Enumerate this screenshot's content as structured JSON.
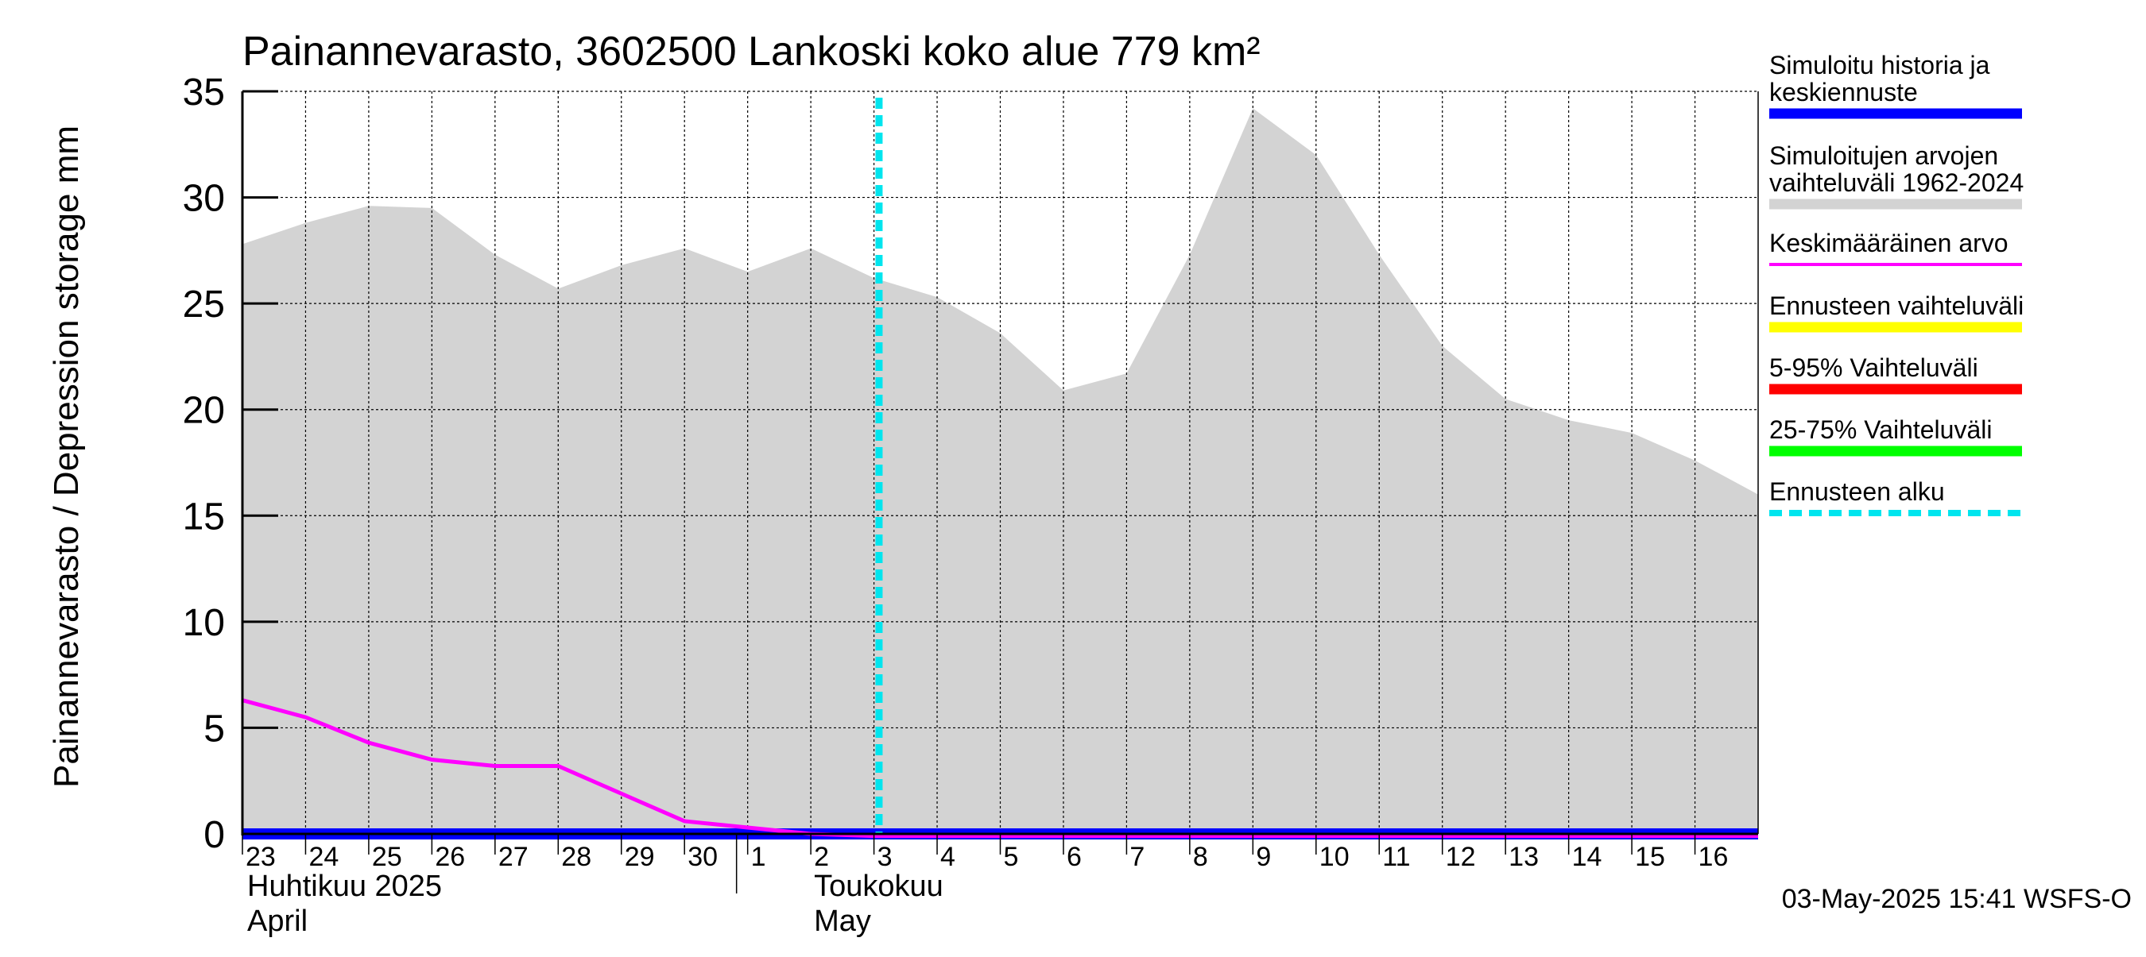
{
  "chart_data": {
    "type": "area",
    "title": "Painannevarasto, 3602500 Lankoski koko alue 779 km²",
    "ylabel": "Painannevarasto / Depression storage    mm",
    "ylim": [
      0,
      35
    ],
    "yticks": [
      "0",
      "5",
      "10",
      "15",
      "20",
      "25",
      "30",
      "35"
    ],
    "xlim": [
      "2025-04-23",
      "2025-05-17"
    ],
    "x_tick_labels": [
      "23",
      "24",
      "25",
      "26",
      "27",
      "28",
      "29",
      "30",
      "1",
      "2",
      "3",
      "4",
      "5",
      "6",
      "7",
      "8",
      "9",
      "10",
      "11",
      "12",
      "13",
      "14",
      "15",
      "16"
    ],
    "month_labels": [
      {
        "fi": "Huhtikuu  2025",
        "en": "April"
      },
      {
        "fi": "Toukokuu",
        "en": "May"
      }
    ],
    "grid": true,
    "legend_position": "right",
    "forecast_start": "2025-05-03",
    "timestamp": "03-May-2025 15:41 WSFS-O",
    "colors": {
      "history": "#0000ff",
      "range": "#d3d3d3",
      "mean": "#ff00ff",
      "forecast_range": "#ffff00",
      "p5_95": "#ff0000",
      "p25_75": "#00ff00",
      "forecast_start": "#00e5ee"
    },
    "legend": [
      {
        "label": "Simuloitu historia ja keskiennuste",
        "color": "#0000ff",
        "style": "solid"
      },
      {
        "label": "Simuloitujen arvojen vaihteluväli 1962-2024",
        "color": "#d3d3d3",
        "style": "solid"
      },
      {
        "label": "Keskimääräinen arvo",
        "color": "#ff00ff",
        "style": "thin"
      },
      {
        "label": "Ennusteen vaihteluväli",
        "color": "#ffff00",
        "style": "solid"
      },
      {
        "label": "5-95% Vaihteluväli",
        "color": "#ff0000",
        "style": "solid"
      },
      {
        "label": "25-75% Vaihteluväli",
        "color": "#00ff00",
        "style": "solid"
      },
      {
        "label": "Ennusteen alku",
        "color": "#00e5ee",
        "style": "dashed"
      }
    ],
    "series": {
      "range_max": {
        "x": [
          "2025-04-23",
          "2025-04-24",
          "2025-04-25",
          "2025-04-26",
          "2025-04-27",
          "2025-04-28",
          "2025-04-29",
          "2025-04-30",
          "2025-05-01",
          "2025-05-02",
          "2025-05-03",
          "2025-05-04",
          "2025-05-05",
          "2025-05-06",
          "2025-05-07",
          "2025-05-08",
          "2025-05-09",
          "2025-05-10",
          "2025-05-11",
          "2025-05-12",
          "2025-05-13",
          "2025-05-14",
          "2025-05-15",
          "2025-05-16",
          "2025-05-17"
        ],
        "values": [
          27.8,
          28.8,
          29.6,
          29.5,
          27.3,
          25.7,
          26.8,
          27.6,
          26.5,
          27.6,
          26.2,
          25.3,
          23.6,
          20.9,
          21.7,
          27.3,
          34.2,
          32.0,
          27.3,
          23.0,
          20.5,
          19.5,
          18.9,
          17.6,
          16.0
        ]
      },
      "range_min": {
        "x": [
          "2025-04-23",
          "2025-05-17"
        ],
        "values": [
          0,
          0
        ]
      },
      "mean": {
        "x": [
          "2025-04-23",
          "2025-04-24",
          "2025-04-25",
          "2025-04-26",
          "2025-04-27",
          "2025-04-28",
          "2025-04-29",
          "2025-04-30",
          "2025-05-01",
          "2025-05-02",
          "2025-05-03",
          "2025-05-04",
          "2025-05-05",
          "2025-05-06",
          "2025-05-07",
          "2025-05-08",
          "2025-05-09",
          "2025-05-10",
          "2025-05-11",
          "2025-05-12",
          "2025-05-13",
          "2025-05-14",
          "2025-05-15",
          "2025-05-16",
          "2025-05-17"
        ],
        "values": [
          6.3,
          5.5,
          4.3,
          3.5,
          3.2,
          3.2,
          1.9,
          0.6,
          0.3,
          0.0,
          -0.1,
          -0.1,
          -0.1,
          -0.1,
          -0.1,
          -0.1,
          -0.1,
          -0.1,
          -0.1,
          -0.1,
          -0.1,
          -0.1,
          -0.1,
          -0.1,
          -0.1
        ]
      },
      "history": {
        "x": [
          "2025-04-23",
          "2025-05-17"
        ],
        "values": [
          0,
          0
        ]
      }
    }
  }
}
